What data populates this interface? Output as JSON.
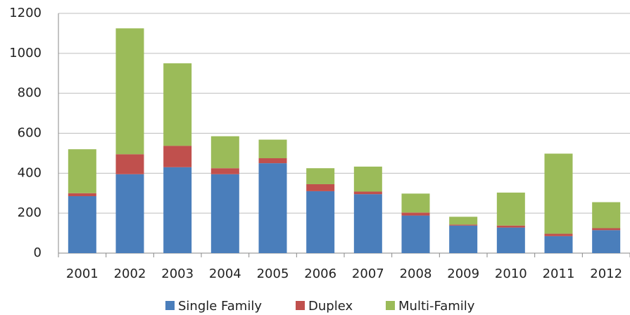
{
  "chart_data": {
    "type": "stacked_bar",
    "categories": [
      "2001",
      "2002",
      "2003",
      "2004",
      "2005",
      "2006",
      "2007",
      "2008",
      "2009",
      "2010",
      "2011",
      "2012"
    ],
    "series": [
      {
        "name": "Single Family",
        "color": "#4a7ebb",
        "values": [
          285,
          395,
          430,
          395,
          450,
          310,
          295,
          188,
          138,
          128,
          85,
          115
        ]
      },
      {
        "name": "Duplex",
        "color": "#c0504d",
        "values": [
          15,
          100,
          107,
          30,
          25,
          35,
          13,
          15,
          5,
          10,
          12,
          10
        ]
      },
      {
        "name": "Multi-Family",
        "color": "#9bbb59",
        "values": [
          220,
          630,
          413,
          160,
          93,
          80,
          125,
          95,
          39,
          165,
          401,
          130
        ]
      }
    ],
    "ylim": [
      0,
      1200
    ],
    "yticks": [
      0,
      200,
      400,
      600,
      800,
      1000,
      1200
    ],
    "grid": true,
    "legend": "bottom"
  }
}
